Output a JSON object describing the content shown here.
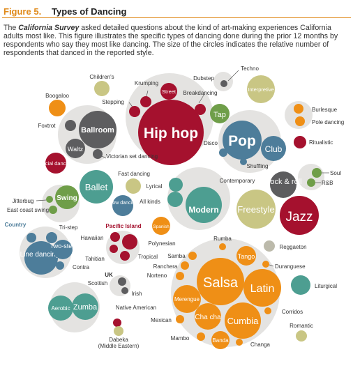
{
  "header": {
    "figure_number": "Figure 5.",
    "title": "Types of Dancing"
  },
  "caption": {
    "survey_name": "California Survey",
    "prefix": "The ",
    "body": " asked detailed questions about the kind of art-making experiences California adults most like. This figure illustrates the specific types of dancing done during the prior 12 months by respondents who say they most like dancing. The size of the circles indicates the relative number of respondents that danced in the reported style."
  },
  "colors": {
    "group_background": "#e4e3e1",
    "hiphop": "#a5112e",
    "pop": "#4d7d9a",
    "ballroom": "#5d5d5f",
    "ballet": "#4d9e91",
    "swing": "#6f9e49",
    "freestyle": "#c9c684",
    "salsa": "#ef8f16",
    "tan": "#bcbaab",
    "accent": "#e08a1a"
  },
  "bubbles": {
    "hiphop": {
      "label": "Hip hop",
      "subs": {
        "street": "Street",
        "krumping": "Krumping",
        "stepping": "Stepping",
        "breakdancing": "Breakdancing",
        "childrens": "Children's"
      }
    },
    "dubstep": {
      "label": "Dubstep"
    },
    "techno": {
      "label": "Techno"
    },
    "interpretive": {
      "label": "Interpretive"
    },
    "tap": {
      "label": "Tap"
    },
    "boogaloo": {
      "label": "Boogaloo"
    },
    "ballroom": {
      "label": "Ballroom",
      "subs": {
        "foxtrot": "Foxtrot",
        "waltz": "Waltz",
        "victorian": "Victorian set dancing"
      }
    },
    "social": {
      "label": "Social dancing"
    },
    "pop": {
      "label": "Pop",
      "subs": {
        "club": "Club",
        "disco": "Disco",
        "shuffling": "Shuffling"
      }
    },
    "burlesque": {
      "label": "Burlesque",
      "subs": {
        "pole": "Pole dancing"
      }
    },
    "ritualistic": {
      "label": "Ritualistic"
    },
    "soul": {
      "label": "Soul",
      "subs": {
        "rb": "R&B"
      }
    },
    "ballet": {
      "label": "Ballet",
      "subs": {
        "fast": "Fast dancing",
        "lyrical": "Lyrical"
      }
    },
    "contemporary": {
      "label": "Contemporary"
    },
    "rock": {
      "label": "Rock & roll"
    },
    "swing": {
      "label": "Swing",
      "subs": {
        "jitterbug": "Jitterbug",
        "eastcoast": "East coast swing"
      }
    },
    "modern": {
      "label": "Modern",
      "subs": {
        "slow": "Slow dancing",
        "allkinds": "All kinds",
        "spanish": "Spanish"
      }
    },
    "freestyle": {
      "label": "Freestyle"
    },
    "jazz": {
      "label": "Jazz"
    },
    "country": {
      "label": "Country",
      "subs": {
        "tristep": "Tri-step",
        "twostep": "Two-step",
        "line": "Line dancing",
        "contra": "Contra"
      }
    },
    "pacific": {
      "label": "Pacific Island",
      "subs": {
        "hawaiian": "Hawaiian",
        "polynesian": "Polynesian",
        "tahitian": "Tahitian",
        "tropical": "Tropical"
      }
    },
    "uk": {
      "label": "UK",
      "subs": {
        "scottish": "Scottish",
        "irish": "Irish"
      }
    },
    "native": {
      "label": "Native American"
    },
    "aerobic": {
      "label": "Aerobic",
      "subs": {
        "zumba": "Zumba"
      }
    },
    "dabeka": {
      "label": "Dabeka",
      "label2": "(Middle Eastern)"
    },
    "salsa": {
      "label": "Salsa",
      "subs": {
        "rumba": "Rumba",
        "samba": "Samba",
        "tango": "Tango",
        "ranchera": "Ranchera",
        "norteno": "Norteno",
        "duranguese": "Duranguese",
        "latin": "Latin",
        "merengue": "Merengue",
        "mexican": "Mexican",
        "chacha": "Cha cha",
        "cumbia": "Cumbia",
        "corridos": "Corridos",
        "mambo": "Mambo",
        "banda": "Banda",
        "changa": "Changa"
      }
    },
    "reggaeton": {
      "label": "Reggaeton"
    },
    "liturgical": {
      "label": "Liturgical"
    },
    "romantic": {
      "label": "Romantic"
    }
  }
}
